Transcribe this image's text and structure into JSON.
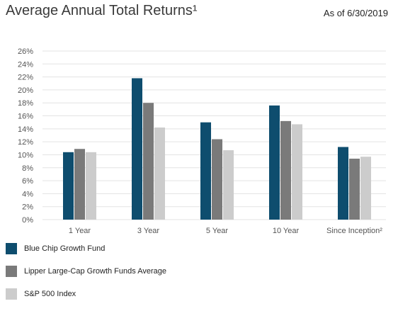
{
  "header": {
    "title": "Average Annual Total Returns¹",
    "as_of": "As of 6/30/2019"
  },
  "colors": {
    "series": [
      "#0e4d6e",
      "#7a7a7a",
      "#cccccc"
    ],
    "grid": "#e3e3e3",
    "axis_text": "#555555"
  },
  "chart_data": {
    "type": "bar",
    "categories": [
      "1 Year",
      "3 Year",
      "5 Year",
      "10 Year",
      "Since Inception²"
    ],
    "series": [
      {
        "name": "Blue Chip Growth Fund",
        "values": [
          10.4,
          21.8,
          15.0,
          17.6,
          11.2
        ]
      },
      {
        "name": "Lipper Large-Cap Growth Funds Average",
        "values": [
          10.9,
          18.0,
          12.4,
          15.2,
          9.4
        ]
      },
      {
        "name": "S&P 500 Index",
        "values": [
          10.4,
          14.2,
          10.7,
          14.7,
          9.7
        ]
      }
    ],
    "ylim": [
      0,
      26
    ],
    "ytick_step": 2,
    "ytick_labels": [
      "0%",
      "2%",
      "4%",
      "6%",
      "8%",
      "10%",
      "12%",
      "14%",
      "16%",
      "18%",
      "20%",
      "22%",
      "24%",
      "26%"
    ],
    "grid": true,
    "legend": "bottom"
  }
}
